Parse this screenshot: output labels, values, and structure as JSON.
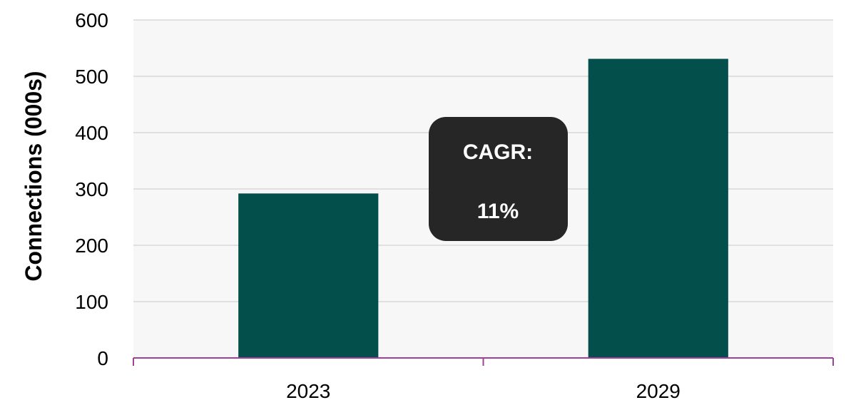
{
  "chart_data": {
    "type": "bar",
    "categories": [
      "2023",
      "2029"
    ],
    "values": [
      292,
      531
    ],
    "ylabel": "Connections (000s)",
    "xlabel": "",
    "ylim": [
      0,
      600
    ],
    "yticks": [
      0,
      100,
      200,
      300,
      400,
      500,
      600
    ],
    "grid": true,
    "legend": "none",
    "bar_color": "#034f4b",
    "plot_background": "#f7f7f7",
    "gridline_color": "#d9d9d9",
    "axis_color": "#a0409a"
  },
  "annotation": {
    "line1": "CAGR:",
    "line2": "11%",
    "background": "#262626"
  }
}
